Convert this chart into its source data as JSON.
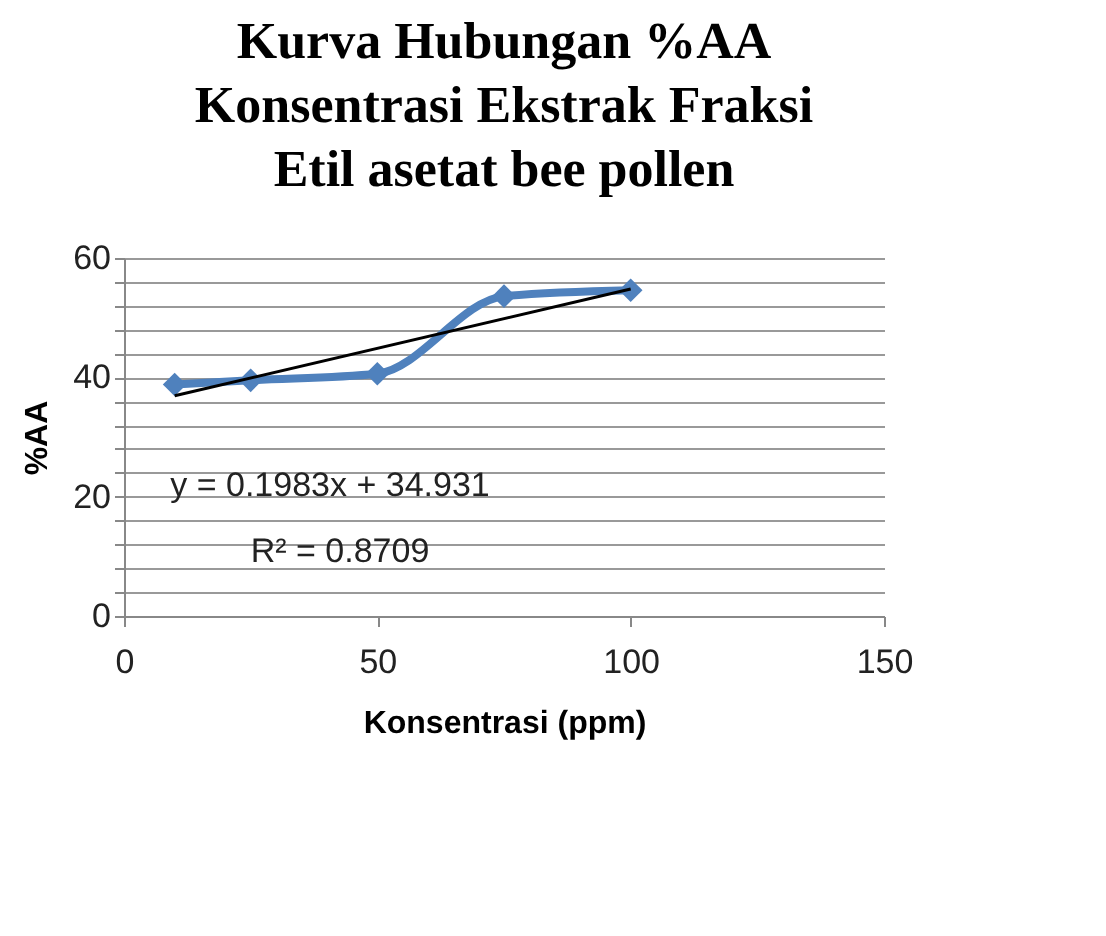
{
  "chart_data": {
    "type": "line",
    "title": [
      "Kurva Hubungan %AA",
      "Konsentrasi Ekstrak Fraksi",
      "Etil asetat bee pollen"
    ],
    "xlabel": "Konsentrasi  (ppm)",
    "ylabel": "%AA",
    "x": [
      10,
      25,
      50,
      75,
      100
    ],
    "series": [
      {
        "color": "#4f81bd",
        "values": [
          38.8,
          39.5,
          40.6,
          53.6,
          54.6
        ],
        "marker": "diamond"
      },
      {
        "type": "line",
        "color": "#000000",
        "x": [
          10,
          100
        ],
        "values": [
          36.9,
          54.8
        ],
        "marker": "none"
      }
    ],
    "annotations": [
      "y = 0.1983x + 34.931",
      "R² = 0.8709"
    ],
    "xlim": [
      0,
      150
    ],
    "xticks": [
      0,
      50,
      100,
      150
    ],
    "ylim": [
      0,
      60
    ],
    "yticks": [
      0,
      {
        "value": 4,
        "label": null
      },
      {
        "value": 8,
        "label": null
      },
      {
        "value": 12,
        "label": null
      },
      {
        "value": 16,
        "label": null
      },
      20,
      {
        "value": 24,
        "label": null
      },
      {
        "value": 28,
        "label": null
      },
      {
        "value": 32,
        "label": null
      },
      {
        "value": 36,
        "label": null
      },
      40,
      {
        "value": 44,
        "label": null
      },
      {
        "value": 48,
        "label": null
      },
      {
        "value": 52,
        "label": null
      },
      {
        "value": 56,
        "label": null
      },
      60
    ],
    "grid": "y",
    "legend": false
  }
}
